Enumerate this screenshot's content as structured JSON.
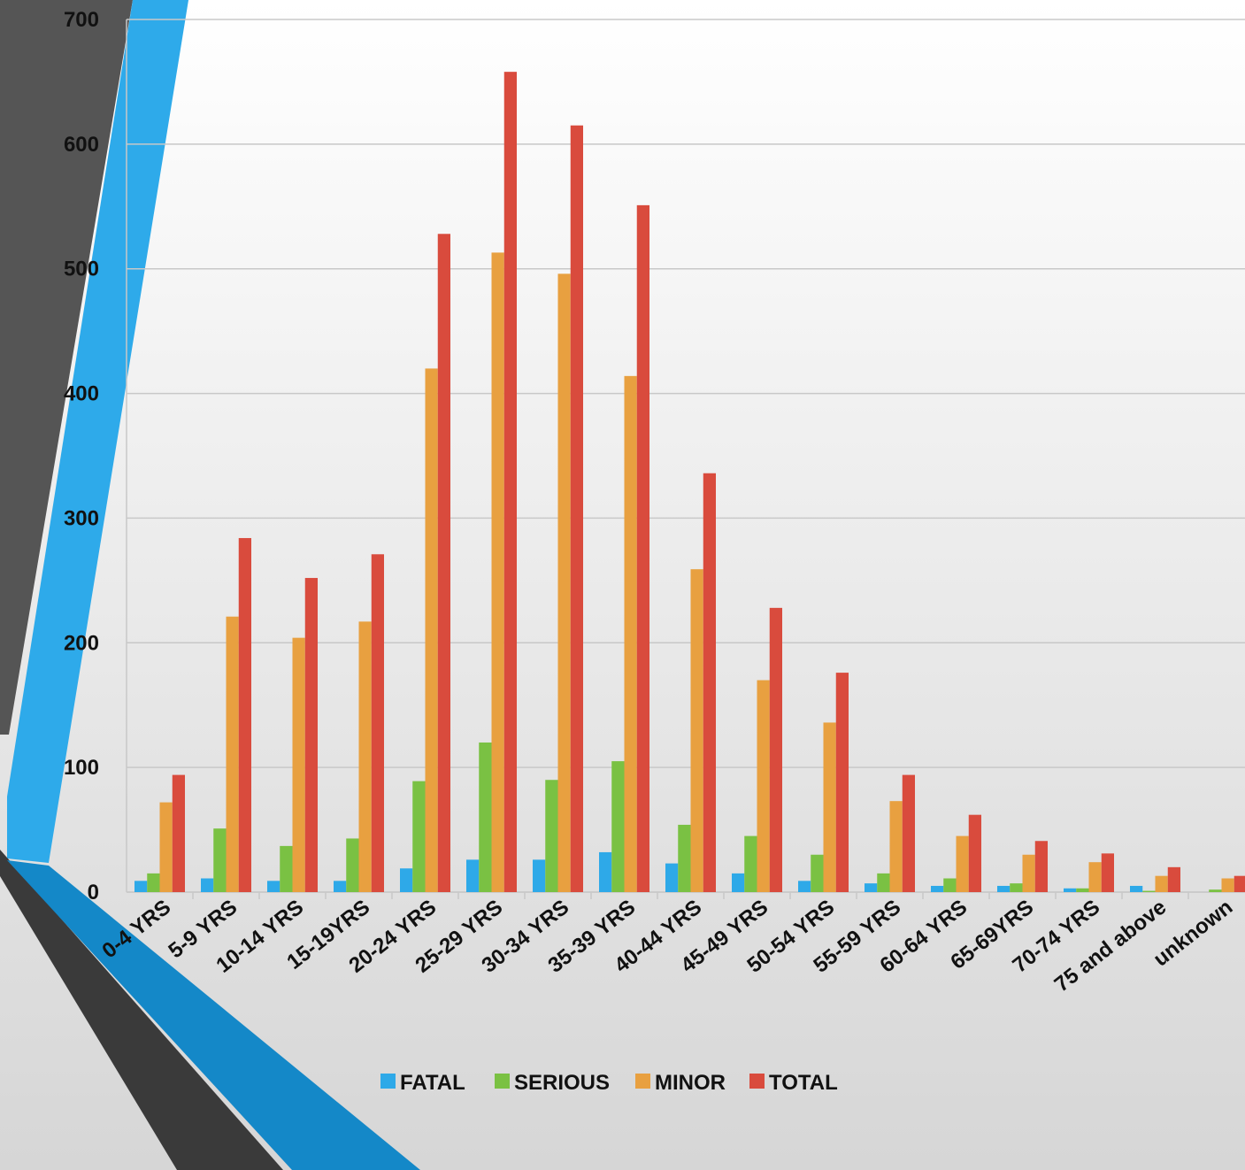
{
  "chart_data": {
    "type": "bar",
    "categories": [
      "0-4 YRS",
      "5-9 YRS",
      "10-14 YRS",
      "15-19YRS",
      "20-24 YRS",
      "25-29 YRS",
      "30-34 YRS",
      "35-39 YRS",
      "40-44 YRS",
      "45-49 YRS",
      "50-54 YRS",
      "55-59 YRS",
      "60-64 YRS",
      "65-69YRS",
      "70-74 YRS",
      "75 and above",
      "unknown"
    ],
    "series": [
      {
        "name": "FATAL",
        "color": "#2ea9e8",
        "values": [
          9,
          11,
          9,
          9,
          19,
          26,
          26,
          32,
          23,
          15,
          9,
          7,
          5,
          5,
          3,
          5,
          0
        ]
      },
      {
        "name": "SERIOUS",
        "color": "#7ac143",
        "values": [
          15,
          51,
          37,
          43,
          89,
          120,
          90,
          105,
          54,
          45,
          30,
          15,
          11,
          7,
          3,
          1,
          2
        ]
      },
      {
        "name": "MINOR",
        "color": "#e8a040",
        "values": [
          72,
          221,
          204,
          217,
          420,
          513,
          496,
          414,
          259,
          170,
          136,
          73,
          45,
          30,
          24,
          13,
          11
        ]
      },
      {
        "name": "TOTAL",
        "color": "#d94b3d",
        "values": [
          94,
          284,
          252,
          271,
          528,
          658,
          615,
          551,
          336,
          228,
          176,
          94,
          62,
          41,
          31,
          20,
          13
        ]
      }
    ],
    "ylim": [
      0,
      700
    ],
    "yticks": [
      0,
      100,
      200,
      300,
      400,
      500,
      600,
      700
    ],
    "grid": true,
    "legend": "bottom"
  }
}
